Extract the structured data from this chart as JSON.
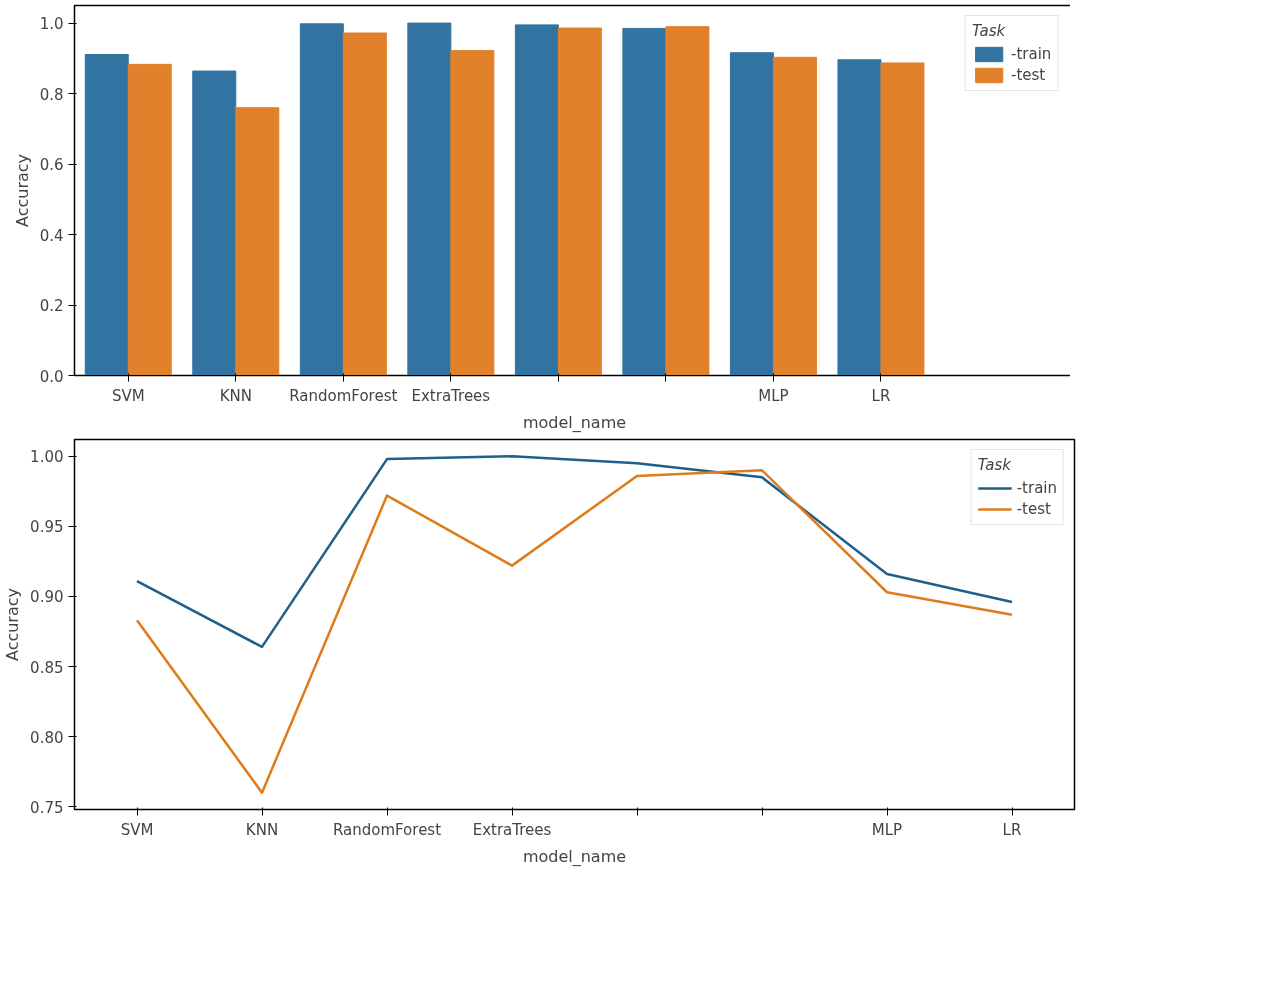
{
  "chart_data": [
    {
      "type": "bar",
      "xlabel": "model_name",
      "ylabel": "Accuracy",
      "legend_title": "Task",
      "legend": "right",
      "grid": false,
      "categories": [
        "SVM",
        "KNN",
        "RandomForest",
        "ExtraTrees",
        null,
        null,
        "MLP",
        "LR"
      ],
      "ylim": [
        0,
        1.05
      ],
      "yticks": [
        {
          "value": 0,
          "label": "0.0"
        },
        {
          "value": 0.2,
          "label": "0.2"
        },
        {
          "value": 0.4,
          "label": "0.4"
        },
        {
          "value": 0.6,
          "label": "0.6"
        },
        {
          "value": 0.8,
          "label": "0.8"
        },
        {
          "value": 1.0,
          "label": "1.0"
        }
      ],
      "series": [
        {
          "name": "-train",
          "color": "#3274a1",
          "values": [
            0.911,
            0.864,
            0.998,
            1.0,
            0.995,
            0.985,
            0.916,
            0.896
          ]
        },
        {
          "name": "-test",
          "color": "#e1812c",
          "values": [
            0.883,
            0.76,
            0.972,
            0.922,
            0.986,
            0.99,
            0.903,
            0.887
          ]
        }
      ]
    },
    {
      "type": "line",
      "xlabel": "model_name",
      "ylabel": "Accuracy",
      "legend_title": "Task",
      "legend": "top right",
      "grid": false,
      "marker": "none",
      "line_style": "solid",
      "categories": [
        "SVM",
        "KNN",
        "RandomForest",
        "ExtraTrees",
        null,
        null,
        "MLP",
        "LR"
      ],
      "ylim": [
        0.748,
        1.012
      ],
      "yticks": [
        {
          "value": 0.75,
          "label": "0.75"
        },
        {
          "value": 0.8,
          "label": "0.80"
        },
        {
          "value": 0.85,
          "label": "0.85"
        },
        {
          "value": 0.9,
          "label": "0.90"
        },
        {
          "value": 0.95,
          "label": "0.95"
        },
        {
          "value": 1.0,
          "label": "1.00"
        }
      ],
      "series": [
        {
          "name": "-train",
          "color": "#1f5f8b",
          "values": [
            0.911,
            0.864,
            0.998,
            1.0,
            0.995,
            0.985,
            0.916,
            0.896
          ]
        },
        {
          "name": "-test",
          "color": "#e07b1a",
          "values": [
            0.883,
            0.76,
            0.972,
            0.922,
            0.986,
            0.99,
            0.903,
            0.887
          ]
        }
      ]
    }
  ]
}
